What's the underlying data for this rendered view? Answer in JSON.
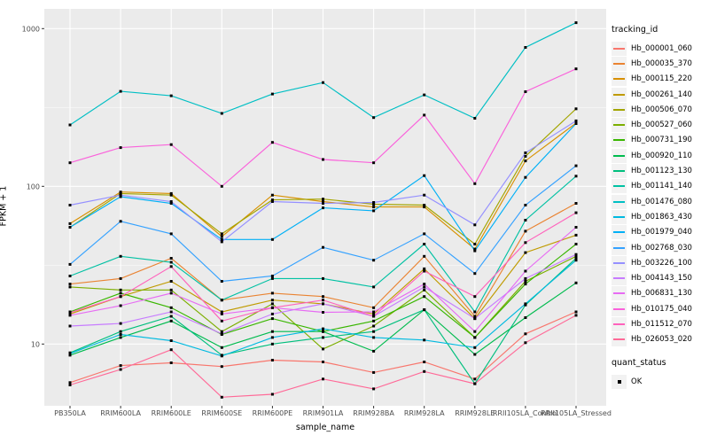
{
  "figure": {
    "panel_bg": "#EBEBEB",
    "grid_color": "#FFFFFF",
    "axis_text_color": "#4D4D4D",
    "tick_color": "#333333",
    "point_color": "#000000",
    "legend_key_bg": "#F2F2F2"
  },
  "axes": {
    "x_title": "sample_name",
    "y_title": "FPKM + 1",
    "y_ticks": [
      "10",
      "100",
      "1000"
    ],
    "y_tick_values": [
      10,
      100,
      1000
    ]
  },
  "legend": {
    "tracking_title": "tracking_id",
    "quant_title": "quant_status",
    "quant_items": [
      {
        "label": "OK"
      }
    ]
  },
  "chart_data": {
    "type": "line",
    "title": "",
    "xlabel": "sample_name",
    "ylabel": "FPKM + 1",
    "y_scale": "log10",
    "y_ticks": [
      10,
      100,
      1000
    ],
    "y_minor_ticks": [
      31.62,
      316.2
    ],
    "ylim": [
      4,
      1300
    ],
    "grid": true,
    "legend_position": "right",
    "point_marker": "black-square",
    "categories": [
      "PB350LA",
      "RRIM600LA",
      "RRIM600LE",
      "RRIM600SE",
      "RRIM600PE",
      "RRIM901LA",
      "RRIM928BA",
      "RRIM928LA",
      "RRIM928LE",
      "RRII105LA_Control",
      "RRII105LA_Stressed"
    ],
    "series": [
      {
        "name": "Hb_000001_060",
        "color": "#F8766D",
        "values": [
          5.7,
          7.3,
          7.6,
          7.2,
          7.9,
          7.7,
          6.6,
          7.7,
          6.0,
          11.6,
          16.0
        ]
      },
      {
        "name": "Hb_000035_370",
        "color": "#EA8331",
        "values": [
          24,
          26,
          35,
          19,
          21,
          20,
          17,
          36,
          15,
          52,
          78
        ]
      },
      {
        "name": "Hb_000115_220",
        "color": "#D89000",
        "values": [
          58,
          92,
          90,
          48,
          88,
          80,
          74,
          74,
          40,
          145,
          252
        ]
      },
      {
        "name": "Hb_000261_140",
        "color": "#C09B00",
        "values": [
          15.5,
          20,
          25,
          16,
          19,
          18,
          15.5,
          30,
          14.5,
          38,
          49
        ]
      },
      {
        "name": "Hb_000506_070",
        "color": "#A3A500",
        "values": [
          55,
          90,
          88,
          50,
          82,
          83,
          77,
          76,
          43,
          155,
          310
        ]
      },
      {
        "name": "Hb_000527_060",
        "color": "#7CAE00",
        "values": [
          23,
          22,
          22,
          12,
          18,
          9.3,
          13,
          22,
          11,
          25,
          36
        ]
      },
      {
        "name": "Hb_000731_190",
        "color": "#39B600",
        "values": [
          16,
          21,
          17,
          11.5,
          14.5,
          12,
          14,
          20,
          11,
          24,
          43
        ]
      },
      {
        "name": "Hb_000920_110",
        "color": "#00BB4E",
        "values": [
          8.5,
          11,
          14,
          9.5,
          12,
          12,
          9,
          16.5,
          8.6,
          14.7,
          24.4
        ]
      },
      {
        "name": "Hb_001123_130",
        "color": "#00BF7D",
        "values": [
          8.8,
          12,
          15,
          8.5,
          10,
          11,
          12,
          16.5,
          5.6,
          17.7,
          35
        ]
      },
      {
        "name": "Hb_001141_140",
        "color": "#00C1A3",
        "values": [
          27,
          36,
          33,
          19,
          26,
          26,
          23,
          43,
          16,
          61,
          116
        ]
      },
      {
        "name": "Hb_001476_080",
        "color": "#00BFC4",
        "values": [
          245,
          400,
          375,
          290,
          385,
          455,
          273,
          380,
          270,
          760,
          1090
        ]
      },
      {
        "name": "Hb_001863_430",
        "color": "#00BAE0",
        "values": [
          8.7,
          11.5,
          10.5,
          8.4,
          11,
          12.5,
          11,
          10.6,
          9.5,
          18,
          34
        ]
      },
      {
        "name": "Hb_001979_040",
        "color": "#00B0F6",
        "values": [
          55,
          86,
          78,
          46,
          46,
          73,
          70,
          117,
          39,
          114,
          250
        ]
      },
      {
        "name": "Hb_002768_030",
        "color": "#35A2FF",
        "values": [
          32,
          60,
          50,
          25,
          27,
          41,
          34,
          50,
          28,
          76,
          135
        ]
      },
      {
        "name": "Hb_003226_100",
        "color": "#9590FF",
        "values": [
          76,
          88,
          80,
          44.5,
          80,
          78,
          79,
          88,
          57,
          163,
          260
        ]
      },
      {
        "name": "Hb_004143_150",
        "color": "#C77CFF",
        "values": [
          13,
          13.5,
          16,
          11.6,
          15.5,
          18,
          15,
          23,
          14.5,
          26,
          37
        ]
      },
      {
        "name": "Hb_006831_130",
        "color": "#E76BF3",
        "values": [
          15.2,
          17.5,
          21,
          15.5,
          17,
          15.9,
          16,
          24,
          12,
          29,
          55
        ]
      },
      {
        "name": "Hb_010175_040",
        "color": "#FA62DB",
        "values": [
          141,
          176,
          184,
          100,
          190,
          148,
          141,
          283,
          104,
          398,
          556
        ]
      },
      {
        "name": "Hb_011512_070",
        "color": "#FF62BC",
        "values": [
          15.8,
          20,
          31,
          14,
          17,
          19,
          15,
          29,
          20,
          44,
          68
        ]
      },
      {
        "name": "Hb_026053_020",
        "color": "#FF6A98",
        "values": [
          5.5,
          6.9,
          9.2,
          4.6,
          4.8,
          6.0,
          5.2,
          6.7,
          5.6,
          10.2,
          15.2
        ]
      }
    ]
  }
}
